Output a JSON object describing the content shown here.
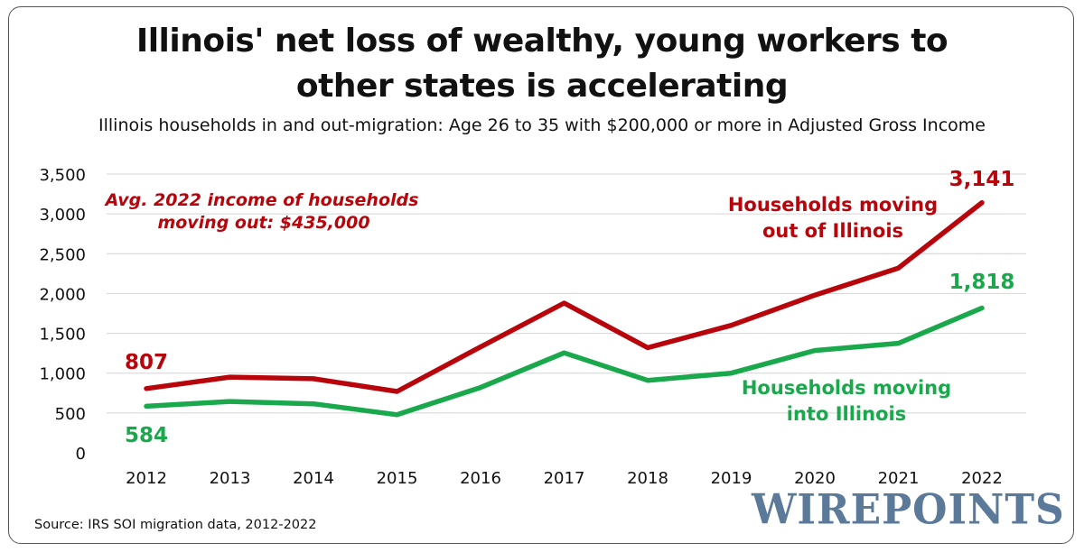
{
  "header": {
    "title_line1": "Illinois' net loss of wealthy, young workers to",
    "title_line2": "other states is accelerating",
    "subtitle": "Illinois households in and out-migration: Age 26 to 35 with $200,000 or more in Adjusted Gross Income"
  },
  "footer": {
    "source": "Source: IRS SOI migration data, 2012-2022",
    "logo_text": "WIREPOINTS"
  },
  "chart_data": {
    "type": "line",
    "categories": [
      "2012",
      "2013",
      "2014",
      "2015",
      "2016",
      "2017",
      "2018",
      "2019",
      "2020",
      "2021",
      "2022"
    ],
    "ylim": [
      0,
      3500
    ],
    "yticks": [
      0,
      500,
      1000,
      1500,
      2000,
      2500,
      3000,
      3500
    ],
    "ytick_labels": [
      "0",
      "500",
      "1,000",
      "1,500",
      "2,000",
      "2,500",
      "3,000",
      "3,500"
    ],
    "grid": true,
    "series": [
      {
        "name_line1": "Households moving",
        "name_line2": "out of Illinois",
        "color": "#b8050c",
        "values": [
          807,
          950,
          930,
          770,
          1330,
          1880,
          1320,
          1600,
          1980,
          2320,
          3141
        ],
        "start_label": "807",
        "end_label": "3,141"
      },
      {
        "name_line1": "Households moving",
        "name_line2": "into Illinois",
        "color": "#1aa84c",
        "values": [
          584,
          645,
          615,
          478,
          820,
          1255,
          910,
          1000,
          1285,
          1375,
          1818
        ],
        "start_label": "584",
        "end_label": "1,818"
      }
    ],
    "annotation": {
      "line1": "Avg. 2022 income of households",
      "line2": "moving out: $435,000",
      "color": "#b8050c"
    }
  }
}
